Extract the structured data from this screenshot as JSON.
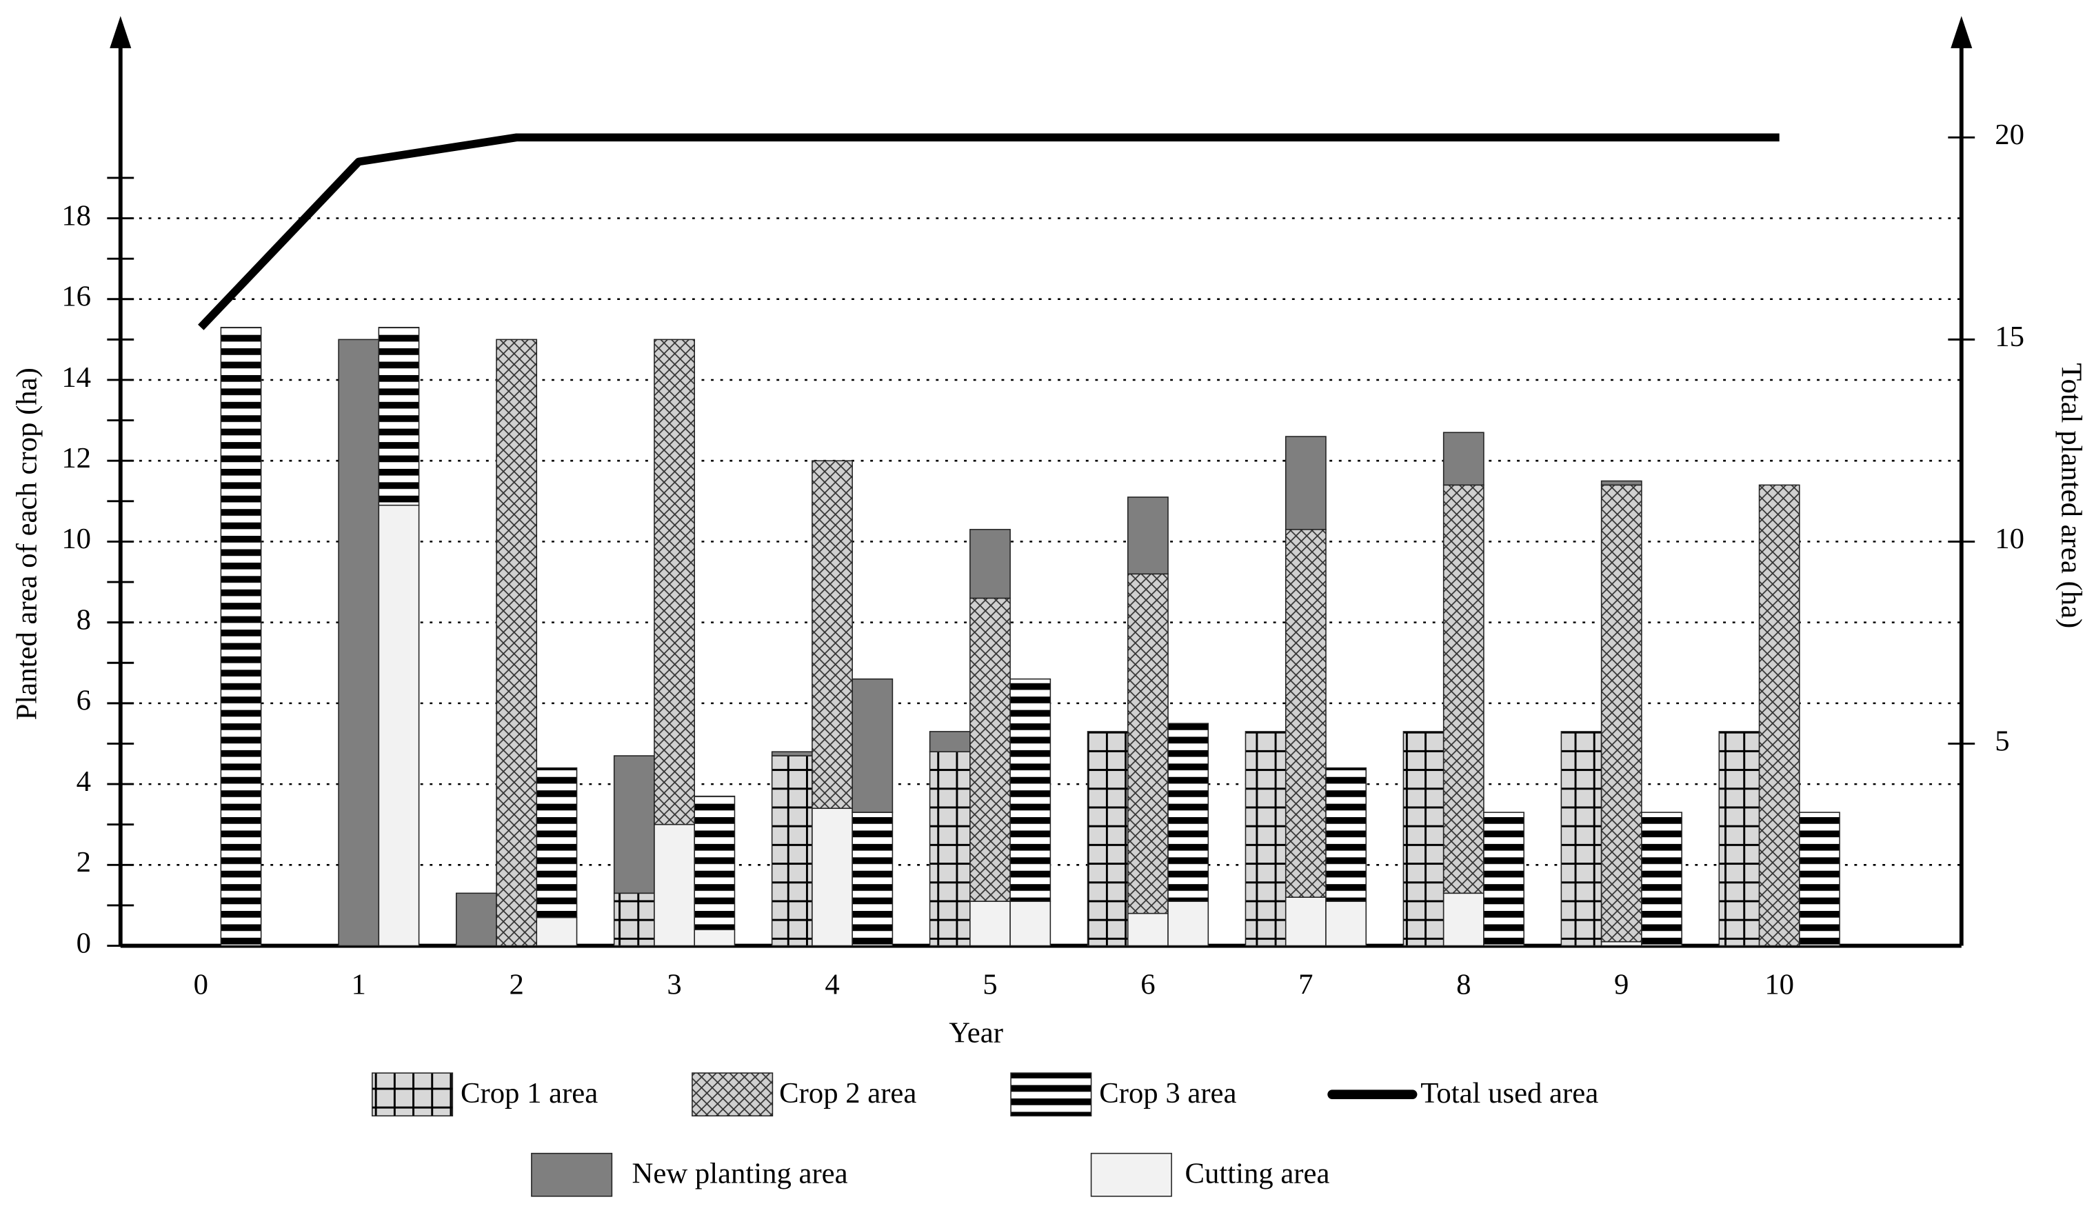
{
  "chart_data": {
    "type": "bar",
    "x_label": "Year",
    "y_label": "Planted area of each crop (ha)",
    "y2_label": "Total planted area (ha)",
    "categories": [
      "0",
      "1",
      "2",
      "3",
      "4",
      "5",
      "6",
      "7",
      "8",
      "9",
      "10"
    ],
    "ylim": [
      0,
      22
    ],
    "yticks": [
      0,
      2,
      4,
      6,
      8,
      10,
      12,
      14,
      16,
      18
    ],
    "yminor_ticks": [
      1,
      3,
      5,
      7,
      9,
      11,
      13,
      15,
      17,
      19
    ],
    "y2lim": [
      0,
      22
    ],
    "y2ticks": [
      5,
      10,
      15,
      20
    ],
    "grid": true,
    "crops": [
      {
        "name": "Crop 1 area",
        "pattern": "grid",
        "cutting": [
          0,
          0,
          0,
          0,
          0,
          0,
          0,
          0,
          0,
          0,
          0
        ],
        "area": [
          0,
          0,
          0,
          1.3,
          4.7,
          4.8,
          5.3,
          5.3,
          5.3,
          5.3,
          5.3
        ],
        "new": [
          0,
          0,
          1.3,
          3.4,
          0.1,
          0.5,
          0,
          0,
          0,
          0,
          0
        ]
      },
      {
        "name": "Crop 2 area",
        "pattern": "cross",
        "cutting": [
          0,
          0,
          0,
          3.0,
          3.4,
          1.1,
          0.8,
          1.2,
          1.3,
          0.1,
          0
        ],
        "area": [
          0,
          0,
          15,
          12,
          8.6,
          7.5,
          8.4,
          9.1,
          10.1,
          11.3,
          11.4
        ],
        "new": [
          0,
          15,
          0,
          0,
          0,
          1.7,
          1.9,
          2.3,
          1.3,
          0.1,
          0
        ]
      },
      {
        "name": "Crop 3 area",
        "pattern": "stripes",
        "cutting": [
          0,
          10.9,
          0.7,
          0.4,
          0,
          1.1,
          1.1,
          1.1,
          0,
          0,
          0
        ],
        "area": [
          15.3,
          4.4,
          3.7,
          3.3,
          3.3,
          5.5,
          4.4,
          3.3,
          3.3,
          3.3,
          3.3
        ],
        "new": [
          0,
          0,
          0,
          0,
          3.3,
          0,
          0,
          0,
          0,
          0,
          0
        ]
      }
    ],
    "segments": {
      "new": {
        "name": "New planting area",
        "color": "#7f7f7f"
      },
      "cutting": {
        "name": "Cutting area",
        "color": "#f2f2f2"
      }
    },
    "line": {
      "name": "Total used area",
      "axis": "y2",
      "color": "#000000",
      "values": [
        15.3,
        19.4,
        20,
        20,
        20,
        20,
        20,
        20,
        20,
        20,
        20
      ]
    }
  }
}
